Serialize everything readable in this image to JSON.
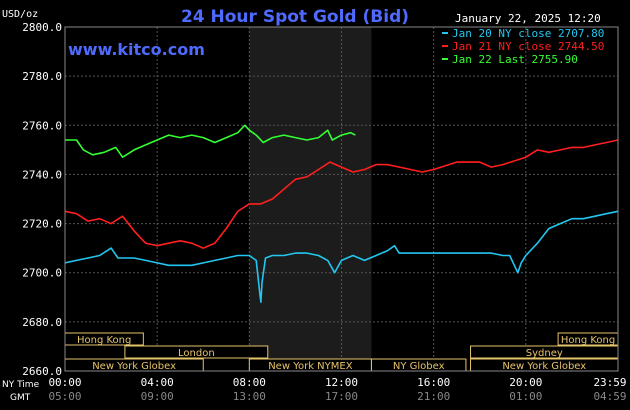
{
  "chart_data": {
    "type": "line",
    "title": "24 Hour Spot Gold (Bid)",
    "site": "www.kitco.com",
    "timestamp": "January 22, 2025 12:20",
    "ylabel": "USD/oz",
    "ylim": [
      2660,
      2800
    ],
    "yticks": [
      "2800.0",
      "2780.0",
      "2760.0",
      "2740.0",
      "2720.0",
      "2700.0",
      "2680.0",
      "2660.0"
    ],
    "ny_time_label": "NY Time",
    "gmt_label": "GMT",
    "ny_ticks": [
      "00:00",
      "04:00",
      "08:00",
      "12:00",
      "16:00",
      "20:00",
      "23:59"
    ],
    "gmt_ticks": [
      "05:00",
      "09:00",
      "13:00",
      "17:00",
      "21:00",
      "01:00",
      "04:59"
    ],
    "grid": true,
    "legend_position": "top-right",
    "colors": {
      "background": "#000000",
      "grid": "#555555",
      "title": "#4f6bff",
      "site": "#4f6bff",
      "shade": "#1c1c1c",
      "session_fill": "#000000",
      "session_border": "#e6c46a"
    },
    "legend": [
      {
        "label": "Jan 20 NY close 2707.80",
        "color": "#22c7f0"
      },
      {
        "label": "Jan 21 NY close 2744.50",
        "color": "#ff1f1f"
      },
      {
        "label": "Jan 22 Last 2755.90",
        "color": "#33ff33"
      }
    ],
    "sessions": [
      {
        "label": "Hong Kong",
        "x0": 0.0,
        "x1": 3.4
      },
      {
        "label": "Hong Kong",
        "x0": 21.4,
        "x1": 24.0
      },
      {
        "label": "London",
        "x0": 2.6,
        "x1": 8.8
      },
      {
        "label": "Sydney",
        "x0": 17.6,
        "x1": 24.0
      },
      {
        "label": "New York Globex",
        "x0": 0.0,
        "x1": 6.0
      },
      {
        "label": "New York NYMEX",
        "x0": 8.0,
        "x1": 13.3
      },
      {
        "label": "NY Globex",
        "x0": 13.3,
        "x1": 17.4
      },
      {
        "label": "New York Globex",
        "x0": 17.6,
        "x1": 24.0
      }
    ],
    "nymex_shade": [
      8.0,
      13.3
    ],
    "series": [
      {
        "name": "Jan 20 NY close 2707.80",
        "color": "#22c7f0",
        "points": [
          [
            0,
            2704
          ],
          [
            0.5,
            2705
          ],
          [
            1,
            2706
          ],
          [
            1.5,
            2707
          ],
          [
            2,
            2710
          ],
          [
            2.3,
            2706
          ],
          [
            3,
            2706
          ],
          [
            3.5,
            2705
          ],
          [
            4,
            2704
          ],
          [
            4.5,
            2703
          ],
          [
            5,
            2703
          ],
          [
            5.5,
            2703
          ],
          [
            6,
            2704
          ],
          [
            6.5,
            2705
          ],
          [
            7,
            2706
          ],
          [
            7.5,
            2707
          ],
          [
            8,
            2707
          ],
          [
            8.3,
            2705
          ],
          [
            8.45,
            2692
          ],
          [
            8.5,
            2688
          ],
          [
            8.55,
            2696
          ],
          [
            8.7,
            2706
          ],
          [
            9,
            2707
          ],
          [
            9.5,
            2707
          ],
          [
            10,
            2708
          ],
          [
            10.5,
            2708
          ],
          [
            11,
            2707
          ],
          [
            11.4,
            2705
          ],
          [
            11.7,
            2700
          ],
          [
            12,
            2705
          ],
          [
            12.5,
            2707
          ],
          [
            13,
            2705
          ],
          [
            13.5,
            2707
          ],
          [
            14,
            2709
          ],
          [
            14.3,
            2711
          ],
          [
            14.5,
            2708
          ],
          [
            15,
            2708
          ],
          [
            16,
            2708
          ],
          [
            17,
            2708
          ],
          [
            18,
            2708
          ],
          [
            18.5,
            2708
          ],
          [
            19,
            2707
          ],
          [
            19.3,
            2707
          ],
          [
            19.5,
            2703
          ],
          [
            19.65,
            2700
          ],
          [
            19.8,
            2704
          ],
          [
            20,
            2707
          ],
          [
            20.5,
            2712
          ],
          [
            21,
            2718
          ],
          [
            21.5,
            2720
          ],
          [
            22,
            2722
          ],
          [
            22.5,
            2722
          ],
          [
            23,
            2723
          ],
          [
            23.5,
            2724
          ],
          [
            24,
            2725
          ]
        ]
      },
      {
        "name": "Jan 21 NY close 2744.50",
        "color": "#ff1f1f",
        "points": [
          [
            0,
            2725
          ],
          [
            0.5,
            2724
          ],
          [
            1,
            2721
          ],
          [
            1.5,
            2722
          ],
          [
            2,
            2720
          ],
          [
            2.5,
            2723
          ],
          [
            3,
            2717
          ],
          [
            3.5,
            2712
          ],
          [
            4,
            2711
          ],
          [
            4.5,
            2712
          ],
          [
            5,
            2713
          ],
          [
            5.5,
            2712
          ],
          [
            6,
            2710
          ],
          [
            6.5,
            2712
          ],
          [
            7,
            2718
          ],
          [
            7.5,
            2725
          ],
          [
            8,
            2728
          ],
          [
            8.5,
            2728
          ],
          [
            9,
            2730
          ],
          [
            9.5,
            2734
          ],
          [
            10,
            2738
          ],
          [
            10.5,
            2739
          ],
          [
            11,
            2742
          ],
          [
            11.5,
            2745
          ],
          [
            12,
            2743
          ],
          [
            12.5,
            2741
          ],
          [
            13,
            2742
          ],
          [
            13.5,
            2744
          ],
          [
            14,
            2744
          ],
          [
            15,
            2742
          ],
          [
            15.5,
            2741
          ],
          [
            16,
            2742
          ],
          [
            17,
            2745
          ],
          [
            18,
            2745
          ],
          [
            18.5,
            2743
          ],
          [
            19,
            2744
          ],
          [
            20,
            2747
          ],
          [
            20.5,
            2750
          ],
          [
            21,
            2749
          ],
          [
            21.5,
            2750
          ],
          [
            22,
            2751
          ],
          [
            22.5,
            2751
          ],
          [
            23,
            2752
          ],
          [
            23.5,
            2753
          ],
          [
            24,
            2754
          ]
        ]
      },
      {
        "name": "Jan 22 Last 2755.90",
        "color": "#33ff33",
        "points": [
          [
            0,
            2754
          ],
          [
            0.5,
            2754
          ],
          [
            0.8,
            2750
          ],
          [
            1.2,
            2748
          ],
          [
            1.7,
            2749
          ],
          [
            2.2,
            2751
          ],
          [
            2.5,
            2747
          ],
          [
            3,
            2750
          ],
          [
            3.5,
            2752
          ],
          [
            4,
            2754
          ],
          [
            4.5,
            2756
          ],
          [
            5,
            2755
          ],
          [
            5.5,
            2756
          ],
          [
            6,
            2755
          ],
          [
            6.5,
            2753
          ],
          [
            7,
            2755
          ],
          [
            7.5,
            2757
          ],
          [
            7.8,
            2760
          ],
          [
            8,
            2758
          ],
          [
            8.3,
            2756
          ],
          [
            8.6,
            2753
          ],
          [
            9,
            2755
          ],
          [
            9.5,
            2756
          ],
          [
            10,
            2755
          ],
          [
            10.5,
            2754
          ],
          [
            11,
            2755
          ],
          [
            11.4,
            2758
          ],
          [
            11.6,
            2754
          ],
          [
            12,
            2756
          ],
          [
            12.4,
            2757
          ],
          [
            12.6,
            2756
          ]
        ]
      }
    ]
  }
}
